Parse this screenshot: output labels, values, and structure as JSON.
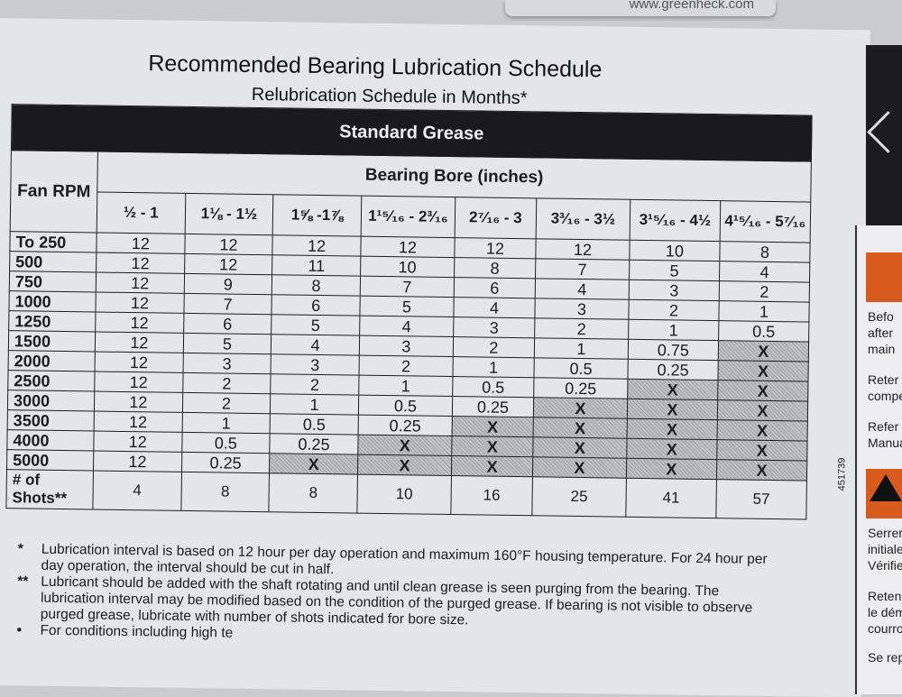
{
  "website": "www.greenheck.com",
  "title": "Recommended Bearing Lubrication Schedule",
  "subtitle": "Relubrication Schedule in Months*",
  "table": {
    "band": "Standard Grease",
    "rpm_header": "Fan RPM",
    "bore_header": "Bearing Bore (inches)",
    "columns": [
      "½ - 1",
      "1⅛ - 1½",
      "1⅝ -1⅞",
      "1¹⁵⁄₁₆ - 2³⁄₁₆",
      "2⁷⁄₁₆ - 3",
      "3³⁄₁₆ - 3½",
      "3¹⁵⁄₁₆ - 4½",
      "4¹⁵⁄₁₆ - 5⁷⁄₁₆"
    ],
    "rows": [
      {
        "rpm": "To 250",
        "values": [
          "12",
          "12",
          "12",
          "12",
          "12",
          "12",
          "10",
          "8"
        ]
      },
      {
        "rpm": "500",
        "values": [
          "12",
          "12",
          "11",
          "10",
          "8",
          "7",
          "5",
          "4"
        ]
      },
      {
        "rpm": "750",
        "values": [
          "12",
          "9",
          "8",
          "7",
          "6",
          "4",
          "3",
          "2"
        ]
      },
      {
        "rpm": "1000",
        "values": [
          "12",
          "7",
          "6",
          "5",
          "4",
          "3",
          "2",
          "1"
        ]
      },
      {
        "rpm": "1250",
        "values": [
          "12",
          "6",
          "5",
          "4",
          "3",
          "2",
          "1",
          "0.5"
        ]
      },
      {
        "rpm": "1500",
        "values": [
          "12",
          "5",
          "4",
          "3",
          "2",
          "1",
          "0.75",
          "X"
        ]
      },
      {
        "rpm": "2000",
        "values": [
          "12",
          "3",
          "3",
          "2",
          "1",
          "0.5",
          "0.25",
          "X"
        ]
      },
      {
        "rpm": "2500",
        "values": [
          "12",
          "2",
          "2",
          "1",
          "0.5",
          "0.25",
          "X",
          "X"
        ]
      },
      {
        "rpm": "3000",
        "values": [
          "12",
          "2",
          "1",
          "0.5",
          "0.25",
          "X",
          "X",
          "X"
        ]
      },
      {
        "rpm": "3500",
        "values": [
          "12",
          "1",
          "0.5",
          "0.25",
          "X",
          "X",
          "X",
          "X"
        ]
      },
      {
        "rpm": "4000",
        "values": [
          "12",
          "0.5",
          "0.25",
          "X",
          "X",
          "X",
          "X",
          "X"
        ]
      },
      {
        "rpm": "5000",
        "values": [
          "12",
          "0.25",
          "X",
          "X",
          "X",
          "X",
          "X",
          "X"
        ]
      }
    ],
    "shots_label": "# of Shots**",
    "shots": [
      "4",
      "8",
      "8",
      "10",
      "16",
      "25",
      "41",
      "57"
    ]
  },
  "notes": [
    {
      "marker": "*",
      "text": "Lubrication interval is based on 12 hour per day operation and maximum 160°F housing temperature. For 24 hour per day operation, the interval should be cut in half."
    },
    {
      "marker": "**",
      "text": "Lubricant should be added with the shaft rotating and until clean grease is seen purging from the bearing. The lubrication interval may be modified based on the condition of the purged grease. If bearing is not visible to observe purged grease, lubricate with number of shots indicated for bore size."
    },
    {
      "marker": "•",
      "text": "For conditions including high te"
    }
  ],
  "part_number": "451739",
  "right_panel": {
    "english": [
      "Befo",
      "after",
      "main",
      "Reter",
      "compe",
      "Refer",
      "Manua"
    ],
    "french": [
      "Serrer le",
      "initiale. F",
      "Vérifier r",
      "Retendre",
      "le démarra",
      "courroie d",
      "Se reporte"
    ]
  },
  "colors": {
    "warning_orange": "#d85a1c",
    "band_dark": "#1a1a1e",
    "x_cell": "#b0b1b6"
  }
}
